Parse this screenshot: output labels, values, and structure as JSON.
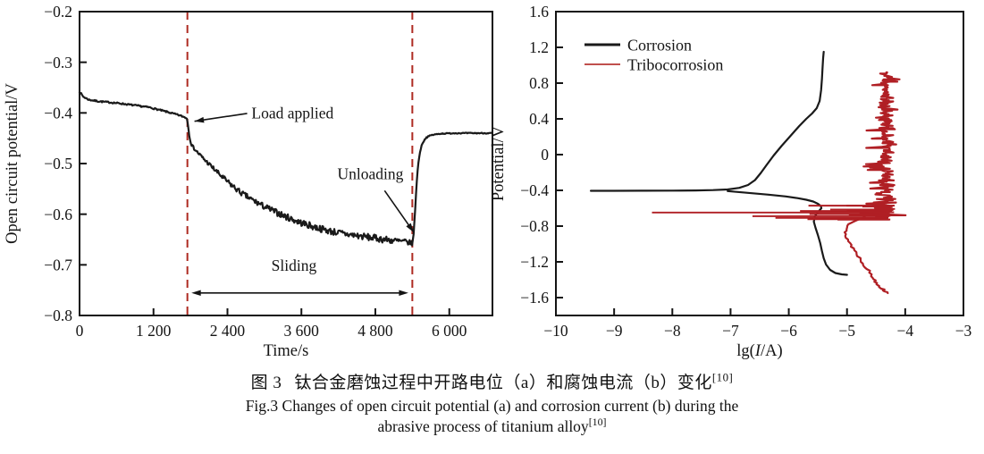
{
  "figure": {
    "caption": {
      "zh_label": "图 3",
      "zh_text": "钛合金磨蚀过程中开路电位（a）和腐蚀电流（b）变化",
      "zh_sup": "[10]",
      "en_line1": "Fig.3 Changes of open circuit potential (a) and corrosion current (b) during the",
      "en_line2": "abrasive process of titanium alloy",
      "en_sup": "[10]"
    }
  },
  "chart_data": [
    {
      "id": "a",
      "type": "line",
      "title": "",
      "xlabel": "Time/s",
      "ylabel": "Open circuit potential/V",
      "xlim": [
        0,
        6700
      ],
      "ylim": [
        -0.8,
        -0.2
      ],
      "grid": false,
      "xticks": {
        "values": [
          0,
          1200,
          2400,
          3600,
          4800,
          6000
        ],
        "labels": [
          "0",
          "1 200",
          "2 400",
          "3 600",
          "4 800",
          "6 000"
        ]
      },
      "yticks": {
        "values": [
          -0.2,
          -0.3,
          -0.4,
          -0.5,
          -0.6,
          -0.7,
          -0.8
        ],
        "labels": [
          "−0.2",
          "−0.3",
          "−0.4",
          "−0.5",
          "−0.6",
          "−0.7",
          "−0.8"
        ]
      },
      "series": [
        {
          "id": "open-circuit-potential",
          "name": "Open circuit potential",
          "kind": "anchors_noise",
          "color": "#1a1a1a",
          "width": 2.2,
          "anchors": [
            [
              0,
              -0.358
            ],
            [
              60,
              -0.368
            ],
            [
              150,
              -0.374
            ],
            [
              300,
              -0.377
            ],
            [
              640,
              -0.381
            ],
            [
              1130,
              -0.389
            ],
            [
              1420,
              -0.398
            ],
            [
              1600,
              -0.404
            ],
            [
              1740,
              -0.41
            ],
            [
              1762,
              -0.425
            ],
            [
              1785,
              -0.448
            ],
            [
              1815,
              -0.462
            ],
            [
              1845,
              -0.468
            ],
            [
              1900,
              -0.476
            ],
            [
              2000,
              -0.489
            ],
            [
              2100,
              -0.501
            ],
            [
              2200,
              -0.513
            ],
            [
              2320,
              -0.527
            ],
            [
              2450,
              -0.541
            ],
            [
              2600,
              -0.556
            ],
            [
              2750,
              -0.568
            ],
            [
              2950,
              -0.582
            ],
            [
              3150,
              -0.594
            ],
            [
              3350,
              -0.605
            ],
            [
              3550,
              -0.615
            ],
            [
              3800,
              -0.625
            ],
            [
              4050,
              -0.633
            ],
            [
              4300,
              -0.639
            ],
            [
              4600,
              -0.644
            ],
            [
              4900,
              -0.649
            ],
            [
              5150,
              -0.653
            ],
            [
              5350,
              -0.656
            ],
            [
              5400,
              -0.658
            ],
            [
              5418,
              -0.645
            ],
            [
              5442,
              -0.6
            ],
            [
              5466,
              -0.545
            ],
            [
              5492,
              -0.505
            ],
            [
              5522,
              -0.478
            ],
            [
              5562,
              -0.46
            ],
            [
              5622,
              -0.449
            ],
            [
              5702,
              -0.444
            ],
            [
              5852,
              -0.441
            ],
            [
              6100,
              -0.44
            ],
            [
              6700,
              -0.44
            ]
          ],
          "noise": {
            "seed": 7,
            "step": 13,
            "amp_anchors": [
              [
                0,
                0.0015
              ],
              [
                1700,
                0.0015
              ],
              [
                1760,
                0.002
              ],
              [
                1900,
                0.0035
              ],
              [
                2300,
                0.005
              ],
              [
                3000,
                0.0062
              ],
              [
                3800,
                0.0068
              ],
              [
                5300,
                0.0068
              ],
              [
                5395,
                0.004
              ],
              [
                5435,
                0.0015
              ],
              [
                5700,
                0.001
              ],
              [
                6700,
                0.001
              ]
            ]
          }
        }
      ],
      "vlines": [
        {
          "id": "load-line",
          "x": 1750,
          "color": "#ae2b22",
          "dash": "9 6",
          "width": 2
        },
        {
          "id": "unload-line",
          "x": 5400,
          "color": "#ae2b22",
          "dash": "9 6",
          "width": 2
        }
      ],
      "annotations": [
        {
          "id": "load-applied",
          "label": "Load applied",
          "text_xy": [
            2790,
            -0.4
          ],
          "anchor": "start",
          "arrow_from": [
            2720,
            -0.401
          ],
          "arrow_to": [
            1865,
            -0.4165
          ]
        },
        {
          "id": "unloading",
          "label": "Unloading",
          "text_xy": [
            4720,
            -0.52
          ],
          "anchor": "middle",
          "arrow_from": [
            4950,
            -0.5535
          ],
          "arrow_to": [
            5425,
            -0.636
          ]
        },
        {
          "id": "sliding",
          "label": "Sliding",
          "text_xy": [
            3480,
            -0.701
          ],
          "anchor": "middle",
          "double_arrow": {
            "y": -0.7555,
            "x1": 1815,
            "x2": 5335
          }
        }
      ]
    },
    {
      "id": "b",
      "type": "line",
      "title": "",
      "xlabel": {
        "pre": "lg(",
        "italic": "I",
        "post": "/A)"
      },
      "ylabel": "Potential/V",
      "xlim": [
        -10,
        -3
      ],
      "ylim": [
        -1.8,
        1.6
      ],
      "grid": false,
      "xticks": {
        "values": [
          -10,
          -9,
          -8,
          -7,
          -6,
          -5,
          -4,
          -3
        ],
        "labels": [
          "−10",
          "−9",
          "−8",
          "−7",
          "−6",
          "−5",
          "−4",
          "−3"
        ]
      },
      "yticks": {
        "values": [
          1.6,
          1.2,
          0.8,
          0.4,
          0,
          -0.4,
          -0.8,
          -1.2,
          -1.6
        ],
        "labels": [
          "1.6",
          "1.2",
          "0.8",
          "0.4",
          "0",
          "−0.4",
          "−0.8",
          "−1.2",
          "−1.6"
        ]
      },
      "legend": {
        "position": "top-left",
        "entries": [
          {
            "label": "Corrosion",
            "color": "#1a1a1a"
          },
          {
            "label": "Tribocorrosion",
            "color": "#c0504d"
          }
        ]
      },
      "series": [
        {
          "id": "corrosion-upper",
          "name": "Corrosion (anodic)",
          "kind": "polyline",
          "color": "#1a1a1a",
          "width": 2.2,
          "points": [
            [
              -9.4,
              -0.405
            ],
            [
              -9.0,
              -0.405
            ],
            [
              -8.5,
              -0.404
            ],
            [
              -8.0,
              -0.403
            ],
            [
              -7.6,
              -0.401
            ],
            [
              -7.3,
              -0.397
            ],
            [
              -7.05,
              -0.39
            ],
            [
              -6.85,
              -0.372
            ],
            [
              -6.7,
              -0.34
            ],
            [
              -6.58,
              -0.285
            ],
            [
              -6.48,
              -0.205
            ],
            [
              -6.38,
              -0.115
            ],
            [
              -6.26,
              -0.01
            ],
            [
              -6.12,
              0.1
            ],
            [
              -5.97,
              0.21
            ],
            [
              -5.82,
              0.32
            ],
            [
              -5.7,
              0.4
            ],
            [
              -5.6,
              0.46
            ],
            [
              -5.52,
              0.52
            ],
            [
              -5.47,
              0.6
            ],
            [
              -5.445,
              0.72
            ],
            [
              -5.43,
              0.85
            ],
            [
              -5.42,
              0.97
            ],
            [
              -5.41,
              1.08
            ],
            [
              -5.4,
              1.15
            ]
          ]
        },
        {
          "id": "corrosion-lower",
          "name": "Corrosion (cathodic)",
          "kind": "polyline",
          "color": "#1a1a1a",
          "width": 2.2,
          "points": [
            [
              -7.05,
              -0.408
            ],
            [
              -6.7,
              -0.428
            ],
            [
              -6.35,
              -0.448
            ],
            [
              -6.05,
              -0.468
            ],
            [
              -5.85,
              -0.487
            ],
            [
              -5.7,
              -0.505
            ],
            [
              -5.58,
              -0.525
            ],
            [
              -5.5,
              -0.55
            ],
            [
              -5.45,
              -0.575
            ],
            [
              -5.44,
              -0.6
            ],
            [
              -5.5,
              -0.645
            ],
            [
              -5.55,
              -0.69
            ],
            [
              -5.57,
              -0.75
            ],
            [
              -5.54,
              -0.82
            ],
            [
              -5.5,
              -0.9
            ],
            [
              -5.46,
              -0.99
            ],
            [
              -5.43,
              -1.08
            ],
            [
              -5.4,
              -1.16
            ],
            [
              -5.36,
              -1.23
            ],
            [
              -5.29,
              -1.29
            ],
            [
              -5.2,
              -1.325
            ],
            [
              -5.09,
              -1.34
            ],
            [
              -5.0,
              -1.345
            ]
          ]
        },
        {
          "id": "tribocorrosion-spikes",
          "name": "Tribocorrosion (OCP spikes)",
          "kind": "h_spikes",
          "color": "#b01f24",
          "width": 1.9,
          "v": -0.648,
          "x_right": -4.38,
          "main_from": -8.35,
          "count": 34,
          "v_jitter": 0.085,
          "len_pow": 2.4,
          "max_len": 2.3,
          "seed": 12
        },
        {
          "id": "tribocorrosion-band",
          "name": "Tribocorrosion (noisy anodic band)",
          "kind": "noisy_vertical",
          "color": "#b01f24",
          "width": 2.2,
          "center": -4.33,
          "jitter": 0.15,
          "spike_p": 0.17,
          "spike_max": 0.34,
          "v_top": 0.92,
          "v_bottom": -0.7,
          "dv": 0.013,
          "seed": 11
        },
        {
          "id": "tribocorrosion-lower",
          "name": "Tribocorrosion (cathodic)",
          "kind": "polyline",
          "color": "#b01f24",
          "width": 2.2,
          "jitter_x": 0.03,
          "subdiv": 5,
          "seed": 13,
          "points": [
            [
              -4.7,
              -0.7
            ],
            [
              -4.95,
              -0.78
            ],
            [
              -5.05,
              -0.87
            ],
            [
              -4.97,
              -0.97
            ],
            [
              -4.87,
              -1.07
            ],
            [
              -4.76,
              -1.18
            ],
            [
              -4.65,
              -1.28
            ],
            [
              -4.55,
              -1.38
            ],
            [
              -4.47,
              -1.45
            ],
            [
              -4.4,
              -1.5
            ],
            [
              -4.3,
              -1.55
            ]
          ]
        }
      ]
    }
  ]
}
